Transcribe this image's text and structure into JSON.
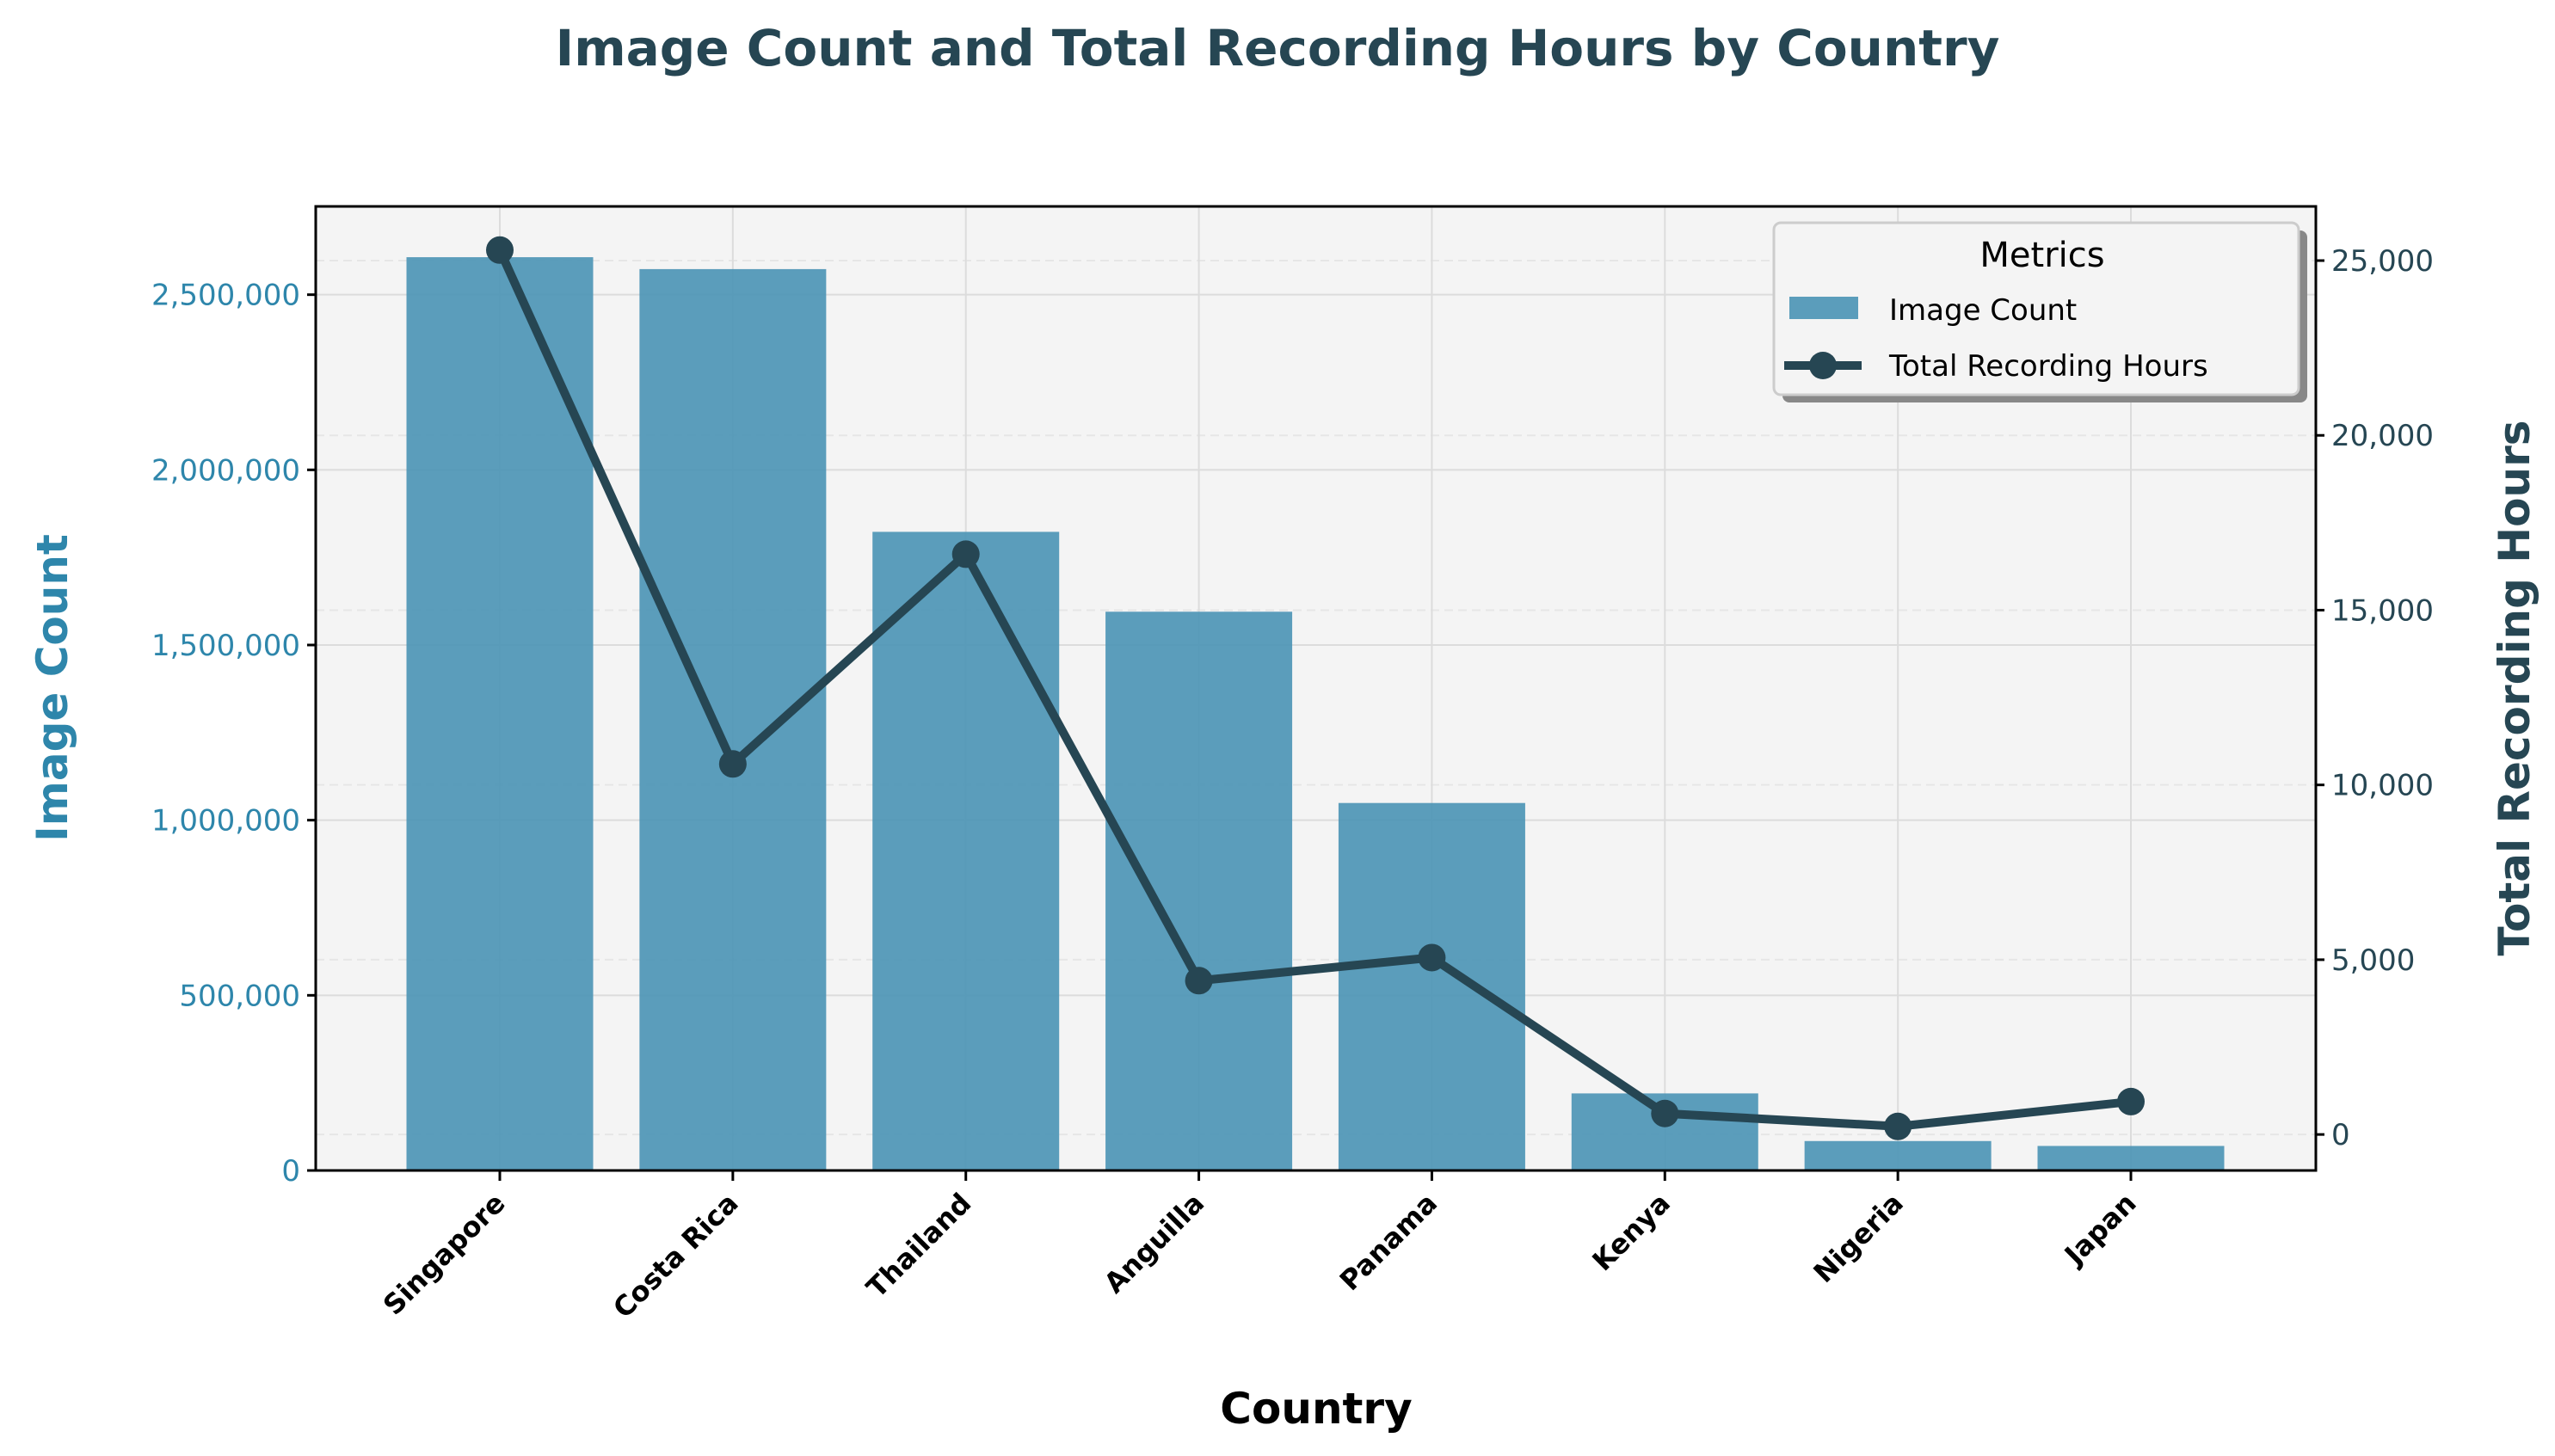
{
  "chart_data": {
    "type": "bar+line",
    "title": "Image Count and Total Recording Hours by Country",
    "xlabel": "Country",
    "ylabel": "Image Count",
    "y2label": "Total Recording Hours",
    "categories": [
      "Singapore",
      "Costa Rica",
      "Thailand",
      "Anguilla",
      "Panama",
      "Kenya",
      "Nigeria",
      "Japan"
    ],
    "series": [
      {
        "name": "Image Count",
        "type": "bar",
        "axis": "left",
        "color": "#4a93b5",
        "values": [
          2607000,
          2573000,
          1823000,
          1595000,
          1049000,
          220000,
          84000,
          70000
        ]
      },
      {
        "name": "Total Recording Hours",
        "type": "line",
        "axis": "right",
        "color": "#264653",
        "values": [
          25300,
          10600,
          16600,
          4400,
          5060,
          600,
          230,
          940
        ]
      }
    ],
    "ylim": [
      0,
      2752000
    ],
    "y2lim": [
      -1030,
      26550
    ],
    "yticks": [
      0,
      500000,
      1000000,
      1500000,
      2000000,
      2500000
    ],
    "ytick_labels": [
      "0",
      "500,000",
      "1,000,000",
      "1,500,000",
      "2,000,000",
      "2,500,000"
    ],
    "y2ticks": [
      0,
      5000,
      10000,
      15000,
      20000,
      25000
    ],
    "y2tick_labels": [
      "0",
      "5,000",
      "10,000",
      "15,000",
      "20,000",
      "25,000"
    ],
    "grid": true,
    "legend": {
      "title": "Metrics",
      "placement": "top-right",
      "entries": [
        "Image Count",
        "Total Recording Hours"
      ]
    },
    "colors": {
      "left_axis": "#2e86ab",
      "right_axis": "#264653",
      "background": "#f4f4f4"
    }
  }
}
